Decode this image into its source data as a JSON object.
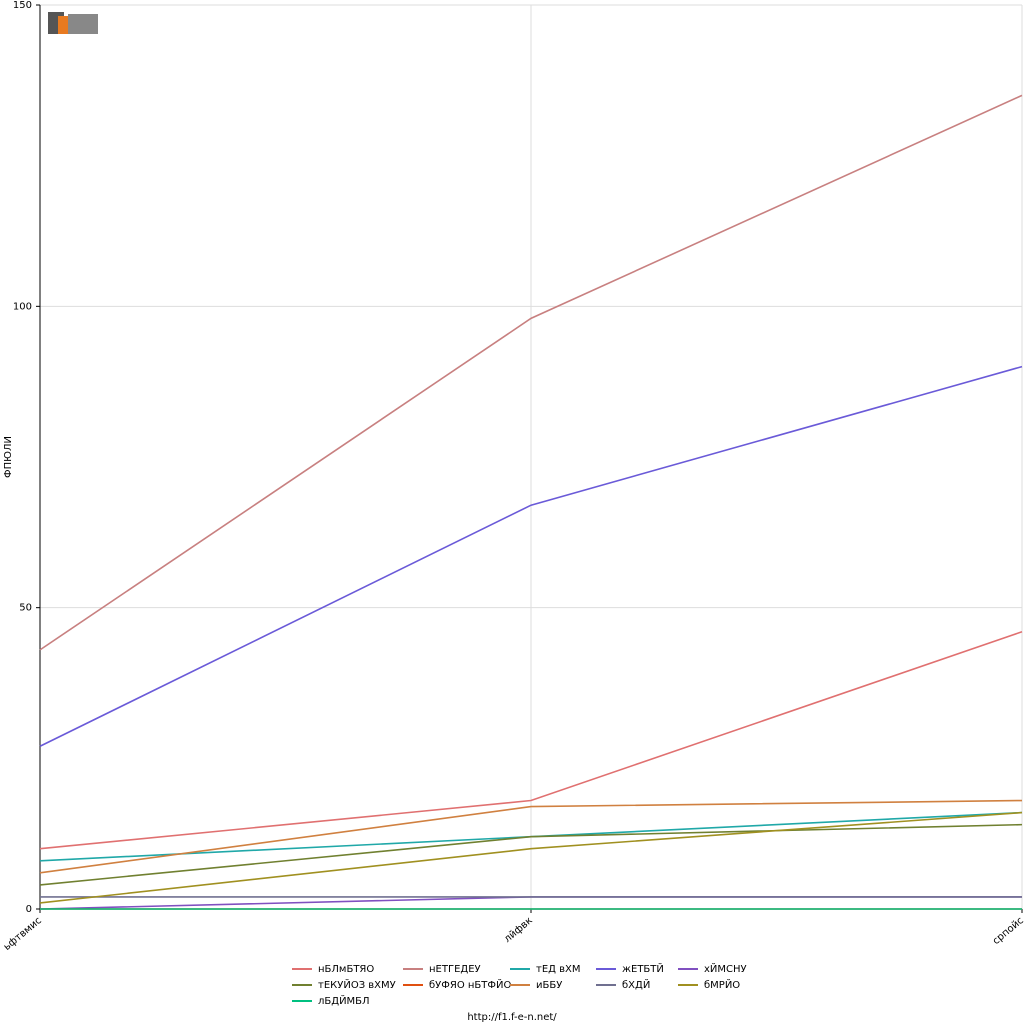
{
  "chart_data": {
    "type": "line",
    "y_label": "ФПЮЛИ",
    "footer": "http://f1.f-e-n.net/",
    "categories": [
      "ьфтвмис",
      "лйфвк",
      "српойс"
    ],
    "ylim": [
      0,
      150
    ],
    "yticks": [
      0,
      50,
      100,
      150
    ],
    "grid": true,
    "series": [
      {
        "name": "нБЛмБТЯО",
        "color": "#e07070",
        "values": [
          10,
          18,
          46
        ]
      },
      {
        "name": "нЕТГЕДЕУ",
        "color": "#c88080",
        "values": [
          43,
          98,
          135
        ]
      },
      {
        "name": "тЕД вХМ",
        "color": "#20a8a8",
        "values": [
          8,
          12,
          16
        ]
      },
      {
        "name": "жЕТБТЙ",
        "color": "#6a5ad8",
        "values": [
          27,
          67,
          90
        ]
      },
      {
        "name": "хЙМСНУ",
        "color": "#8050c0",
        "values": [
          0,
          2,
          2
        ]
      },
      {
        "name": "тЕКУЙОЗ вХМУ",
        "color": "#708030",
        "values": [
          4,
          12,
          14
        ]
      },
      {
        "name": "бУФЯО нБТФЙО",
        "color": "#e05010",
        "values": [
          0,
          0,
          0
        ]
      },
      {
        "name": "иББУ",
        "color": "#d08040",
        "values": [
          6,
          17,
          18
        ]
      },
      {
        "name": "бХДЙ",
        "color": "#707090",
        "values": [
          2,
          2,
          2
        ]
      },
      {
        "name": "бМРЙО",
        "color": "#a09020",
        "values": [
          1,
          10,
          16
        ]
      },
      {
        "name": "лБДЙМБЛ",
        "color": "#00c080",
        "values": [
          0,
          0,
          0
        ]
      }
    ]
  }
}
